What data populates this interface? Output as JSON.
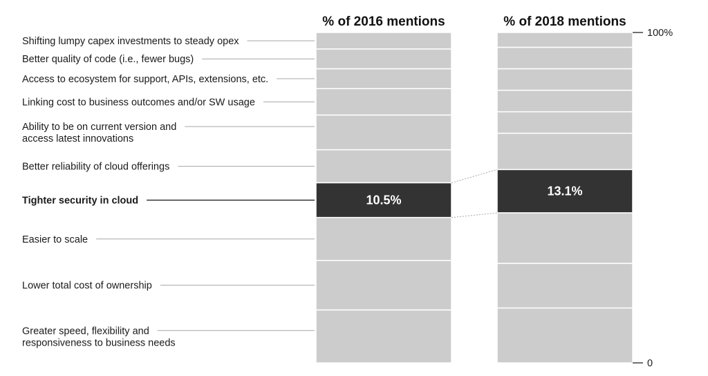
{
  "chart_data": {
    "type": "bar",
    "stacked": true,
    "normalized": true,
    "categories": [
      "Shifting lumpy capex investments to steady opex",
      "Better quality of code (i.e., fewer bugs)",
      "Access to ecosystem for support, APIs, extensions, etc.",
      "Linking cost to business outcomes and/or SW usage",
      "Ability to be on current version and access latest innovations",
      "Better reliability of cloud offerings",
      "Tighter security in cloud",
      "Easier to scale",
      "Lower total cost of ownership",
      "Greater speed, flexibility and responsiveness to business needs"
    ],
    "category_lines": [
      [
        "Shifting lumpy capex investments to steady opex"
      ],
      [
        "Better quality of code (i.e., fewer bugs)"
      ],
      [
        "Access to ecosystem for support, APIs, extensions, etc."
      ],
      [
        "Linking cost to business outcomes and/or SW usage"
      ],
      [
        "Ability to be on current version and",
        "access latest innovations"
      ],
      [
        "Better reliability of cloud offerings"
      ],
      [
        "Tighter security in cloud"
      ],
      [
        "Easier to scale"
      ],
      [
        "Lower total cost of ownership"
      ],
      [
        "Greater speed, flexibility and",
        "responsiveness to business needs"
      ]
    ],
    "highlight_category": "Tighter security in cloud",
    "series": [
      {
        "name": "% of 2016 mentions",
        "values": [
          5.0,
          6.0,
          6.0,
          8.0,
          10.5,
          10.0,
          10.5,
          13.0,
          15.0,
          16.0
        ]
      },
      {
        "name": "% of 2018 mentions",
        "values": [
          4.5,
          6.5,
          6.5,
          6.5,
          6.5,
          11.0,
          13.1,
          15.3,
          13.5,
          16.6
        ]
      }
    ],
    "highlight_labels": [
      "10.5%",
      "13.1%"
    ],
    "yticks": [
      "0",
      "100%"
    ],
    "ylim": [
      0,
      100
    ],
    "colors": {
      "segment": "#cccccc",
      "highlight": "#333333",
      "divider": "#ffffff",
      "leader": "#a6a6a6",
      "leader_highlight": "#222222",
      "axis": "#111111"
    },
    "legend": "none"
  }
}
